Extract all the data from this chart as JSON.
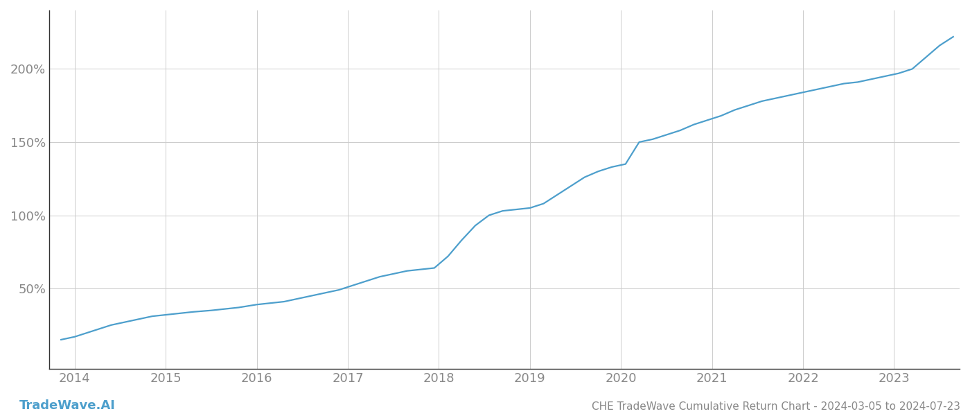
{
  "title": "CHE TradeWave Cumulative Return Chart - 2024-03-05 to 2024-07-23",
  "watermark": "TradeWave.AI",
  "line_color": "#4d9fcc",
  "background_color": "#ffffff",
  "grid_color": "#cccccc",
  "x_years": [
    2014,
    2015,
    2016,
    2017,
    2018,
    2019,
    2020,
    2021,
    2022,
    2023
  ],
  "y_ticks": [
    50,
    100,
    150,
    200
  ],
  "y_tick_labels": [
    "50%",
    "100%",
    "150%",
    "200%"
  ],
  "ylim": [
    -5,
    240
  ],
  "xlim": [
    2013.72,
    2023.72
  ],
  "data_x": [
    2013.85,
    2014.0,
    2014.1,
    2014.25,
    2014.4,
    2014.55,
    2014.7,
    2014.85,
    2015.0,
    2015.15,
    2015.3,
    2015.5,
    2015.65,
    2015.8,
    2016.0,
    2016.15,
    2016.3,
    2016.45,
    2016.6,
    2016.75,
    2016.9,
    2017.05,
    2017.2,
    2017.35,
    2017.5,
    2017.65,
    2017.8,
    2017.95,
    2018.1,
    2018.25,
    2018.4,
    2018.55,
    2018.7,
    2018.85,
    2019.0,
    2019.15,
    2019.3,
    2019.45,
    2019.6,
    2019.75,
    2019.9,
    2020.05,
    2020.2,
    2020.35,
    2020.5,
    2020.65,
    2020.8,
    2020.95,
    2021.1,
    2021.25,
    2021.4,
    2021.55,
    2021.7,
    2021.85,
    2022.0,
    2022.15,
    2022.3,
    2022.45,
    2022.6,
    2022.75,
    2022.9,
    2023.05,
    2023.2,
    2023.35,
    2023.5,
    2023.65
  ],
  "data_y": [
    15,
    17,
    19,
    22,
    25,
    27,
    29,
    31,
    32,
    33,
    34,
    35,
    36,
    37,
    39,
    40,
    41,
    43,
    45,
    47,
    49,
    52,
    55,
    58,
    60,
    62,
    63,
    64,
    72,
    83,
    93,
    100,
    103,
    104,
    105,
    108,
    114,
    120,
    126,
    130,
    133,
    135,
    150,
    152,
    155,
    158,
    162,
    165,
    168,
    172,
    175,
    178,
    180,
    182,
    184,
    186,
    188,
    190,
    191,
    193,
    195,
    197,
    200,
    208,
    216,
    222
  ],
  "title_fontsize": 11,
  "watermark_fontsize": 13,
  "tick_fontsize": 13,
  "tick_color": "#888888",
  "spine_color": "#333333",
  "line_width": 1.6
}
